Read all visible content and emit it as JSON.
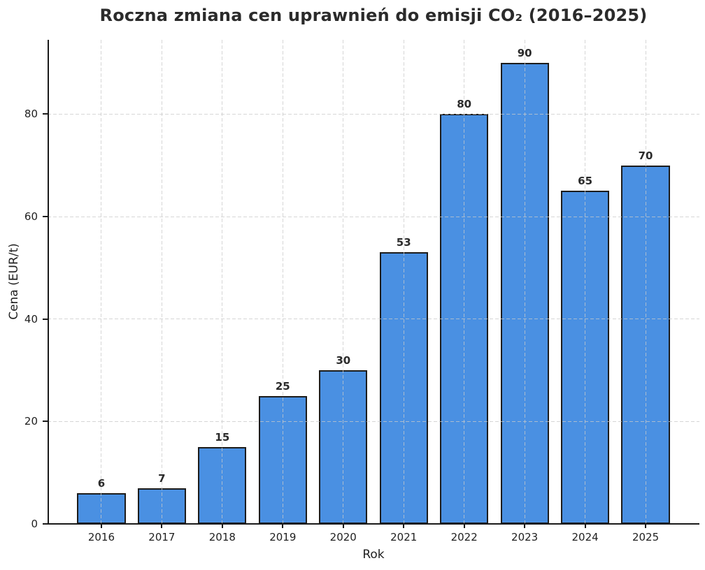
{
  "chart_data": {
    "type": "bar",
    "title": "Roczna zmiana cen uprawnień do emisji CO₂ (2016–2025)",
    "xlabel": "Rok",
    "ylabel": "Cena (EUR/t)",
    "categories": [
      "2016",
      "2017",
      "2018",
      "2019",
      "2020",
      "2021",
      "2022",
      "2023",
      "2024",
      "2025"
    ],
    "values": [
      6,
      7,
      15,
      25,
      30,
      53,
      80,
      90,
      65,
      70
    ],
    "value_labels": [
      "6",
      "7",
      "15",
      "25",
      "30",
      "53",
      "80",
      "90",
      "65",
      "70"
    ],
    "yticks": [
      0,
      20,
      40,
      60,
      80
    ],
    "ylim": [
      0,
      94.5
    ],
    "grid": "dashed-both-axes",
    "legend": "none",
    "colors": {
      "bar_fill": "#4a90e2",
      "bar_edge": "#1c1c1c",
      "grid_line": "#c9c9c9",
      "tick_text": "#1f1f1f",
      "title_text": "#2b2b2b"
    }
  }
}
